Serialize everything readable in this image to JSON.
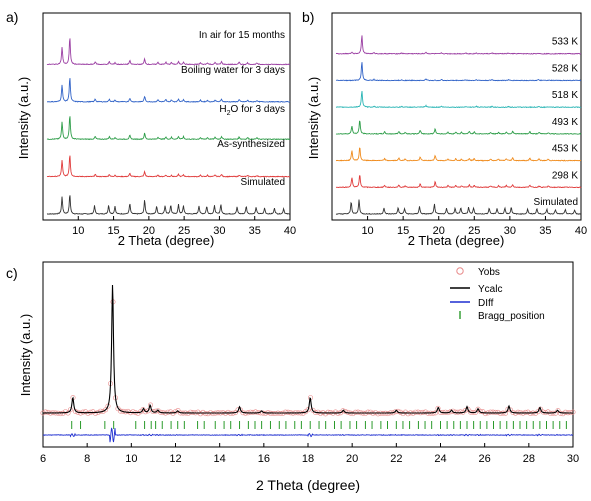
{
  "chart_data": [
    {
      "type": "line",
      "panel_label": "a)",
      "xlabel": "2 Theta (degree)",
      "ylabel": "Intensity (a.u.)",
      "xlim": [
        5,
        40
      ],
      "xticks": [
        5,
        10,
        15,
        20,
        25,
        30,
        35,
        40
      ],
      "tick_labels": [
        "10",
        "15",
        "20",
        "25",
        "30",
        "35",
        "40"
      ],
      "series": [
        {
          "name": "Simulated",
          "color": "#333333",
          "baseline": 0.0,
          "peaks": [
            [
              7.7,
              0.62
            ],
            [
              8.8,
              0.72
            ],
            [
              12.3,
              0.3
            ],
            [
              14.3,
              0.32
            ],
            [
              15.2,
              0.28
            ],
            [
              17.3,
              0.38
            ],
            [
              19.4,
              0.5
            ],
            [
              21.1,
              0.28
            ],
            [
              22.3,
              0.3
            ],
            [
              23.1,
              0.32
            ],
            [
              24.2,
              0.34
            ],
            [
              24.9,
              0.3
            ],
            [
              27.1,
              0.3
            ],
            [
              28.2,
              0.28
            ],
            [
              29.3,
              0.3
            ],
            [
              30.2,
              0.35
            ],
            [
              32.5,
              0.25
            ],
            [
              33.8,
              0.28
            ],
            [
              35.2,
              0.24
            ],
            [
              36.4,
              0.22
            ],
            [
              37.8,
              0.22
            ],
            [
              39.1,
              0.2
            ]
          ]
        },
        {
          "name": "As-synthesized",
          "color": "#e03c3c",
          "baseline": 0.2,
          "peaks": [
            [
              7.7,
              0.6
            ],
            [
              8.8,
              0.82
            ],
            [
              12.4,
              0.08
            ],
            [
              14.4,
              0.08
            ],
            [
              15.2,
              0.06
            ],
            [
              17.3,
              0.12
            ],
            [
              19.4,
              0.18
            ],
            [
              21.3,
              0.06
            ],
            [
              22.4,
              0.06
            ],
            [
              23.2,
              0.05
            ],
            [
              24.2,
              0.08
            ],
            [
              24.9,
              0.07
            ],
            [
              27.3,
              0.05
            ],
            [
              28.3,
              0.05
            ],
            [
              29.4,
              0.06
            ],
            [
              30.3,
              0.08
            ],
            [
              32.8,
              0.06
            ],
            [
              34.0,
              0.05
            ],
            [
              35.3,
              0.04
            ]
          ]
        },
        {
          "name": "H2O for 3 days",
          "color": "#2f9e4a",
          "baseline": 0.4,
          "peaks": [
            [
              7.7,
              0.62
            ],
            [
              8.8,
              0.9
            ],
            [
              12.4,
              0.1
            ],
            [
              14.4,
              0.1
            ],
            [
              15.2,
              0.07
            ],
            [
              17.3,
              0.14
            ],
            [
              19.4,
              0.22
            ],
            [
              21.3,
              0.08
            ],
            [
              22.4,
              0.08
            ],
            [
              23.2,
              0.07
            ],
            [
              24.2,
              0.1
            ],
            [
              24.9,
              0.09
            ],
            [
              27.3,
              0.06
            ],
            [
              28.3,
              0.06
            ],
            [
              29.4,
              0.07
            ],
            [
              30.3,
              0.1
            ],
            [
              32.8,
              0.08
            ],
            [
              34.0,
              0.06
            ],
            [
              35.3,
              0.05
            ]
          ]
        },
        {
          "name": "Boiling water for 3 days",
          "color": "#3264c8",
          "baseline": 0.6,
          "peaks": [
            [
              7.7,
              0.62
            ],
            [
              8.8,
              0.92
            ],
            [
              12.4,
              0.1
            ],
            [
              14.4,
              0.1
            ],
            [
              15.2,
              0.07
            ],
            [
              17.3,
              0.14
            ],
            [
              19.4,
              0.2
            ],
            [
              21.3,
              0.08
            ],
            [
              22.4,
              0.08
            ],
            [
              23.2,
              0.07
            ],
            [
              24.2,
              0.1
            ],
            [
              24.9,
              0.09
            ],
            [
              27.3,
              0.06
            ],
            [
              28.3,
              0.06
            ],
            [
              29.4,
              0.07
            ],
            [
              30.3,
              0.1
            ],
            [
              32.8,
              0.08
            ],
            [
              34.0,
              0.06
            ],
            [
              35.3,
              0.05
            ]
          ]
        },
        {
          "name": "In air for 15 months",
          "color": "#9b3fa3",
          "baseline": 0.8,
          "peaks": [
            [
              7.7,
              0.62
            ],
            [
              8.8,
              1.0
            ],
            [
              12.4,
              0.1
            ],
            [
              14.4,
              0.1
            ],
            [
              15.2,
              0.07
            ],
            [
              17.3,
              0.14
            ],
            [
              19.4,
              0.2
            ],
            [
              21.3,
              0.08
            ],
            [
              22.4,
              0.08
            ],
            [
              23.2,
              0.07
            ],
            [
              24.2,
              0.1
            ],
            [
              24.9,
              0.09
            ],
            [
              27.3,
              0.06
            ],
            [
              28.3,
              0.06
            ],
            [
              29.4,
              0.07
            ],
            [
              30.3,
              0.1
            ],
            [
              32.8,
              0.08
            ],
            [
              34.0,
              0.06
            ],
            [
              35.3,
              0.05
            ]
          ]
        }
      ],
      "labels": {
        "Simulated": "Simulated",
        "As-synthesized": "As-synthesized",
        "H2O_prefix": "H",
        "H2O_sub": "2",
        "H2O_suffix": "O for 3 days",
        "Boiling": "Boiling water for 3 days",
        "Air": "In air for 15 months"
      }
    },
    {
      "type": "line",
      "panel_label": "b)",
      "xlabel": "2 Theta (degree)",
      "ylabel": "Intensity (a.u.)",
      "xlim": [
        5,
        40
      ],
      "xticks": [
        5,
        10,
        15,
        20,
        25,
        30,
        35,
        40
      ],
      "tick_labels": [
        "10",
        "15",
        "20",
        "25",
        "30",
        "35",
        "40"
      ],
      "series": [
        {
          "name": "Simulated",
          "color": "#333333",
          "baseline": 0.0,
          "peaks": [
            [
              7.7,
              0.62
            ],
            [
              8.8,
              0.72
            ],
            [
              12.3,
              0.3
            ],
            [
              14.3,
              0.32
            ],
            [
              15.2,
              0.28
            ],
            [
              17.3,
              0.38
            ],
            [
              19.4,
              0.5
            ],
            [
              21.1,
              0.28
            ],
            [
              22.3,
              0.3
            ],
            [
              23.1,
              0.32
            ],
            [
              24.2,
              0.34
            ],
            [
              24.9,
              0.3
            ],
            [
              27.1,
              0.3
            ],
            [
              28.2,
              0.28
            ],
            [
              29.3,
              0.3
            ],
            [
              30.2,
              0.35
            ],
            [
              32.5,
              0.25
            ],
            [
              33.8,
              0.28
            ],
            [
              35.2,
              0.24
            ],
            [
              36.4,
              0.22
            ],
            [
              37.8,
              0.22
            ],
            [
              39.1,
              0.2
            ]
          ]
        },
        {
          "name": "298 K",
          "color": "#e03c3c",
          "baseline": 0.16,
          "peaks": [
            [
              7.8,
              0.5
            ],
            [
              8.9,
              0.65
            ],
            [
              12.4,
              0.1
            ],
            [
              14.4,
              0.12
            ],
            [
              15.3,
              0.08
            ],
            [
              17.4,
              0.18
            ],
            [
              19.5,
              0.28
            ],
            [
              21.3,
              0.08
            ],
            [
              22.4,
              0.1
            ],
            [
              23.2,
              0.08
            ],
            [
              24.3,
              0.12
            ],
            [
              25.0,
              0.1
            ],
            [
              27.3,
              0.08
            ],
            [
              28.4,
              0.08
            ],
            [
              29.5,
              0.1
            ],
            [
              30.4,
              0.14
            ],
            [
              32.8,
              0.12
            ],
            [
              34.1,
              0.08
            ],
            [
              35.4,
              0.07
            ]
          ]
        },
        {
          "name": "453 K",
          "color": "#f08c1e",
          "baseline": 0.32,
          "peaks": [
            [
              7.8,
              0.5
            ],
            [
              8.9,
              0.7
            ],
            [
              12.4,
              0.1
            ],
            [
              14.4,
              0.12
            ],
            [
              15.3,
              0.08
            ],
            [
              17.4,
              0.18
            ],
            [
              19.5,
              0.28
            ],
            [
              21.3,
              0.08
            ],
            [
              22.4,
              0.1
            ],
            [
              23.2,
              0.08
            ],
            [
              24.3,
              0.12
            ],
            [
              25.0,
              0.1
            ],
            [
              27.3,
              0.08
            ],
            [
              28.4,
              0.08
            ],
            [
              29.5,
              0.1
            ],
            [
              30.4,
              0.14
            ],
            [
              32.8,
              0.12
            ],
            [
              34.1,
              0.08
            ],
            [
              35.4,
              0.07
            ]
          ]
        },
        {
          "name": "493 K",
          "color": "#2f9e4a",
          "baseline": 0.48,
          "peaks": [
            [
              7.8,
              0.4
            ],
            [
              8.9,
              0.72
            ],
            [
              12.4,
              0.1
            ],
            [
              14.4,
              0.12
            ],
            [
              15.3,
              0.08
            ],
            [
              17.4,
              0.18
            ],
            [
              19.5,
              0.26
            ],
            [
              21.3,
              0.08
            ],
            [
              22.4,
              0.1
            ],
            [
              23.2,
              0.08
            ],
            [
              24.3,
              0.12
            ],
            [
              25.0,
              0.1
            ],
            [
              27.3,
              0.08
            ],
            [
              28.4,
              0.08
            ],
            [
              29.5,
              0.1
            ],
            [
              30.4,
              0.14
            ],
            [
              32.8,
              0.12
            ],
            [
              34.1,
              0.08
            ],
            [
              35.4,
              0.07
            ]
          ]
        },
        {
          "name": "518 K",
          "color": "#2ab5b5",
          "baseline": 0.64,
          "peaks": [
            [
              9.2,
              0.85
            ],
            [
              10.9,
              0.05
            ],
            [
              14.8,
              0.04
            ],
            [
              18.2,
              0.08
            ],
            [
              20.4,
              0.04
            ],
            [
              23.8,
              0.04
            ],
            [
              25.3,
              0.04
            ],
            [
              27.5,
              0.04
            ],
            [
              29.8,
              0.03
            ],
            [
              34.0,
              0.03
            ]
          ]
        },
        {
          "name": "528 K",
          "color": "#3264c8",
          "baseline": 0.8,
          "peaks": [
            [
              9.2,
              0.95
            ],
            [
              10.9,
              0.05
            ],
            [
              14.8,
              0.04
            ],
            [
              18.2,
              0.08
            ],
            [
              20.4,
              0.04
            ],
            [
              23.8,
              0.04
            ],
            [
              25.3,
              0.04
            ],
            [
              27.5,
              0.04
            ],
            [
              29.8,
              0.03
            ],
            [
              34.0,
              0.03
            ]
          ]
        },
        {
          "name": "533 K",
          "color": "#9b3fa3",
          "baseline": 0.96,
          "peaks": [
            [
              7.8,
              0.06
            ],
            [
              9.2,
              0.95
            ],
            [
              10.9,
              0.05
            ],
            [
              14.8,
              0.04
            ],
            [
              18.2,
              0.08
            ],
            [
              20.4,
              0.04
            ],
            [
              23.8,
              0.04
            ],
            [
              25.3,
              0.04
            ],
            [
              27.5,
              0.04
            ],
            [
              29.8,
              0.03
            ],
            [
              34.0,
              0.03
            ]
          ]
        }
      ]
    },
    {
      "type": "line",
      "panel_label": "c)",
      "xlabel": "2 Theta (degree)",
      "ylabel": "Intensity (a.u.)",
      "xlim": [
        6,
        30
      ],
      "xticks": [
        6,
        8,
        10,
        12,
        14,
        16,
        18,
        20,
        22,
        24,
        26,
        28,
        30
      ],
      "legend": [
        "Yobs",
        "Ycalc",
        "DIff",
        "Bragg_position"
      ],
      "legend_placement": "top-right",
      "colors": {
        "Yobs": "#e88a8a",
        "Ycalc": "#000000",
        "DIff": "#1f2fd0",
        "Bragg_position": "#2a9a2a"
      },
      "peaks": [
        [
          7.35,
          0.11
        ],
        [
          9.15,
          0.92
        ],
        [
          10.85,
          0.055
        ],
        [
          10.55,
          0.03
        ],
        [
          11.2,
          0.02
        ],
        [
          12.1,
          0.015
        ],
        [
          14.9,
          0.045
        ],
        [
          15.9,
          0.015
        ],
        [
          18.1,
          0.11
        ],
        [
          19.6,
          0.02
        ],
        [
          22.0,
          0.02
        ],
        [
          23.9,
          0.04
        ],
        [
          24.5,
          0.02
        ],
        [
          25.2,
          0.045
        ],
        [
          25.7,
          0.03
        ],
        [
          27.1,
          0.05
        ],
        [
          28.5,
          0.04
        ],
        [
          29.3,
          0.02
        ]
      ],
      "bragg_positions": [
        7.3,
        7.7,
        8.8,
        9.2,
        10.2,
        10.6,
        10.9,
        11.1,
        11.4,
        11.8,
        12.1,
        12.4,
        13.0,
        13.3,
        13.8,
        14.2,
        14.5,
        14.9,
        15.3,
        15.6,
        15.9,
        16.3,
        16.7,
        17.0,
        17.4,
        17.7,
        18.1,
        18.5,
        18.8,
        19.2,
        19.5,
        19.9,
        20.2,
        20.6,
        20.9,
        21.3,
        21.6,
        22.0,
        22.3,
        22.6,
        23.0,
        23.3,
        23.6,
        24.0,
        24.3,
        24.6,
        24.9,
        25.2,
        25.5,
        25.8,
        26.1,
        26.4,
        26.7,
        27.0,
        27.3,
        27.6,
        27.9,
        28.2,
        28.5,
        28.8,
        29.1,
        29.4,
        29.7
      ]
    }
  ]
}
